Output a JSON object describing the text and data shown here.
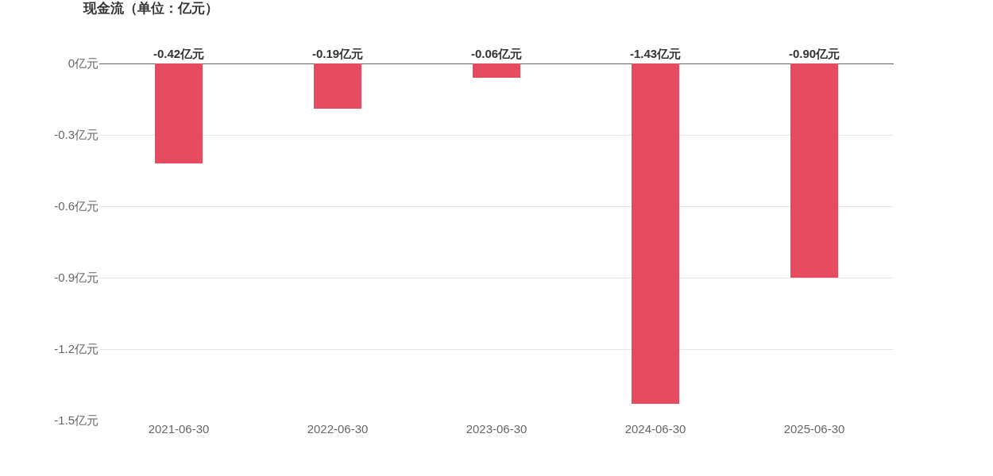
{
  "chart_data": {
    "type": "bar",
    "title": "现金流（单位：亿元）",
    "categories": [
      "2021-06-30",
      "2022-06-30",
      "2023-06-30",
      "2024-06-30",
      "2025-06-30"
    ],
    "values": [
      -0.42,
      -0.19,
      -0.06,
      -1.43,
      -0.9
    ],
    "value_labels": [
      "-0.42亿元",
      "-0.19亿元",
      "-0.06亿元",
      "-1.43亿元",
      "-0.90亿元"
    ],
    "color": "#e64b5f",
    "ylim": [
      -1.5,
      0
    ],
    "yticks": [
      {
        "value": 0,
        "label": "0亿元"
      },
      {
        "value": -0.3,
        "label": "-0.3亿元"
      },
      {
        "value": -0.6,
        "label": "-0.6亿元"
      },
      {
        "value": -0.9,
        "label": "-0.9亿元"
      },
      {
        "value": -1.2,
        "label": "-1.2亿元"
      },
      {
        "value": -1.5,
        "label": "-1.5亿元"
      }
    ],
    "grid": "y"
  }
}
